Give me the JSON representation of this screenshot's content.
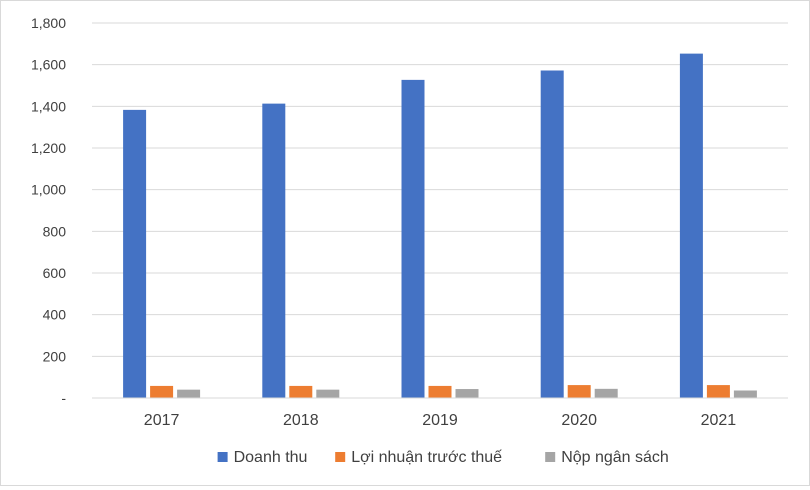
{
  "chart_data": {
    "type": "bar",
    "categories": [
      "2017",
      "2018",
      "2019",
      "2020",
      "2021"
    ],
    "series": [
      {
        "name": "Doanh thu",
        "color": "#4472c4",
        "values": [
          1383,
          1413,
          1527,
          1572,
          1653
        ]
      },
      {
        "name": "Lợi nhuận trước thuế",
        "color": "#ed7d31",
        "values": [
          58,
          58,
          58,
          62,
          62
        ]
      },
      {
        "name": "Nộp ngân sách",
        "color": "#a5a5a5",
        "values": [
          40,
          40,
          43,
          44,
          36
        ]
      }
    ],
    "y_ticks": [
      "-",
      "200",
      "400",
      "600",
      "800",
      "1,000",
      "1,200",
      "1,400",
      "1,600",
      "1,800"
    ],
    "ylim": [
      0,
      1800
    ],
    "grid": true,
    "legend_position": "bottom"
  }
}
